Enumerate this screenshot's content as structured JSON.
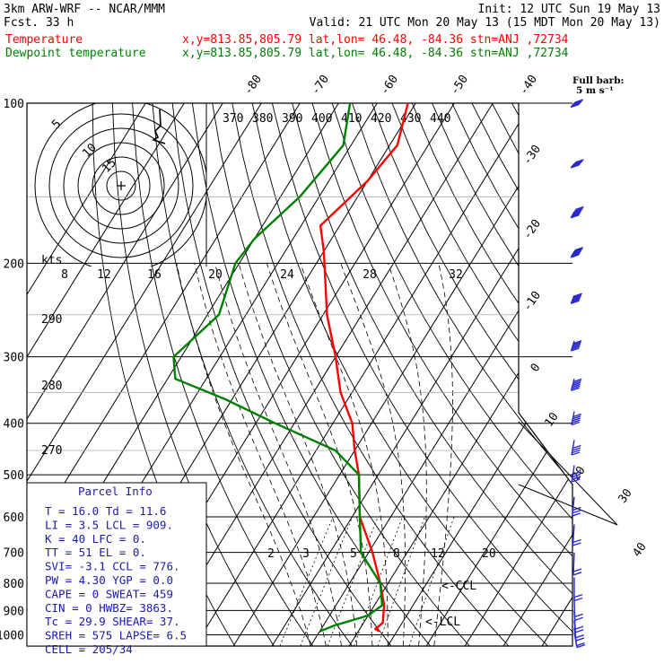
{
  "header": {
    "model": "3km ARW-WRF -- NCAR/MMM",
    "init": "Init: 12 UTC Sun 19 May 13",
    "fcst": "Fcst.   33 h",
    "valid": "Valid: 21 UTC Mon 20 May 13 (15 MDT Mon 20 May 13)"
  },
  "legend": [
    {
      "name": "Temperature",
      "location": "x,y=813.85,805.79   lat,lon= 46.48, -84.36  stn=ANJ ,72734",
      "color": "#ff0000"
    },
    {
      "name": "Dewpoint temperature",
      "location": "x,y=813.85,805.79   lat,lon= 46.48, -84.36  stn=ANJ ,72734",
      "color": "#008000"
    }
  ],
  "wind_barb_key": {
    "line1": "Full barb:",
    "line2": "5 m s⁻¹"
  },
  "hodograph": {
    "ring_labels": [
      "5",
      "10",
      "15"
    ],
    "speed_unit": "kts",
    "speed_ticks": [
      "8",
      "12",
      "16",
      "20",
      "24",
      "28",
      "32"
    ]
  },
  "parcel_info": {
    "title": "Parcel Info",
    "rows": [
      {
        "l": "T  =    16.0 Td =  11.6"
      },
      {
        "l": "LI =     3.5 LCL =  909."
      },
      {
        "l": "K  =      40 LFC =    0."
      },
      {
        "l": "TT =      51 EL  =    0."
      },
      {
        "l": "SVI=    -3.1 CCL =  776."
      },
      {
        "l": "PW =    4.30 YGP =   0.0"
      },
      {
        "l": "CAPE =     0 SWEAT=  459"
      },
      {
        "l": "CIN  =     0 HWBZ= 3863."
      },
      {
        "l": "Tc  =   29.9 SHEAR=  37."
      },
      {
        "l": "SREH =   575 LAPSE=  6.5"
      },
      {
        "l": "CELL = 205/34"
      }
    ]
  },
  "level_markers": {
    "ccl": "CCL",
    "lcl": "LCL"
  },
  "chart_data": {
    "type": "line",
    "pressure_levels": [
      "100",
      "200",
      "300",
      "400",
      "500",
      "600",
      "700",
      "800",
      "900",
      "1000"
    ],
    "isotherm_labels": [
      "-80",
      "-70",
      "-60",
      "-50",
      "-40",
      "-30",
      "-20",
      "-10",
      "0",
      "10",
      "20",
      "30",
      "40"
    ],
    "theta_labels": [
      "370",
      "380",
      "390",
      "400",
      "410",
      "420",
      "430",
      "440"
    ],
    "height_labels": [
      "290",
      "280",
      "270"
    ],
    "mixing_ratio_labels": [
      "2",
      "3",
      "5",
      "8",
      "12",
      "20"
    ],
    "series": [
      {
        "name": "Temperature",
        "color": "#ff0000",
        "points": [
          [
            100,
            -62
          ],
          [
            120,
            -58
          ],
          [
            140,
            -60
          ],
          [
            170,
            -65
          ],
          [
            190,
            -60
          ],
          [
            250,
            -49
          ],
          [
            300,
            -40
          ],
          [
            350,
            -33
          ],
          [
            400,
            -25
          ],
          [
            450,
            -20
          ],
          [
            500,
            -15
          ],
          [
            600,
            -8
          ],
          [
            700,
            1
          ],
          [
            800,
            8
          ],
          [
            880,
            12.5
          ],
          [
            950,
            15
          ],
          [
            975,
            14
          ],
          [
            985,
            15.5
          ]
        ]
      },
      {
        "name": "Dewpoint temperature",
        "color": "#008000",
        "points": [
          [
            100,
            -77
          ],
          [
            120,
            -72
          ],
          [
            150,
            -75
          ],
          [
            180,
            -80
          ],
          [
            200,
            -81
          ],
          [
            250,
            -77
          ],
          [
            300,
            -82
          ],
          [
            330,
            -78
          ],
          [
            360,
            -62
          ],
          [
            400,
            -45
          ],
          [
            450,
            -25
          ],
          [
            500,
            -15
          ],
          [
            600,
            -8
          ],
          [
            700,
            -2
          ],
          [
            800,
            8
          ],
          [
            880,
            12
          ],
          [
            920,
            10
          ],
          [
            960,
            3
          ],
          [
            985,
            0
          ]
        ]
      }
    ],
    "wind_barbs": [
      {
        "p": 100,
        "dir": 260,
        "spd": 45
      },
      {
        "p": 130,
        "dir": 260,
        "spd": 50
      },
      {
        "p": 160,
        "dir": 255,
        "spd": 50
      },
      {
        "p": 190,
        "dir": 255,
        "spd": 45
      },
      {
        "p": 230,
        "dir": 250,
        "spd": 35
      },
      {
        "p": 280,
        "dir": 245,
        "spd": 30
      },
      {
        "p": 330,
        "dir": 240,
        "spd": 30
      },
      {
        "p": 380,
        "dir": 235,
        "spd": 25
      },
      {
        "p": 430,
        "dir": 230,
        "spd": 20
      },
      {
        "p": 480,
        "dir": 225,
        "spd": 20
      },
      {
        "p": 550,
        "dir": 215,
        "spd": 15
      },
      {
        "p": 620,
        "dir": 205,
        "spd": 12
      },
      {
        "p": 700,
        "dir": 195,
        "spd": 10
      },
      {
        "p": 780,
        "dir": 180,
        "spd": 10
      },
      {
        "p": 850,
        "dir": 170,
        "spd": 10
      },
      {
        "p": 900,
        "dir": 160,
        "spd": 12
      },
      {
        "p": 940,
        "dir": 150,
        "spd": 10
      },
      {
        "p": 970,
        "dir": 140,
        "spd": 8
      },
      {
        "p": 990,
        "dir": 130,
        "spd": 6
      }
    ]
  },
  "colors": {
    "temperature": "#ff0000",
    "dewpoint": "#008000",
    "info_text": "#1a1aa8",
    "barbs": "#2a2acf"
  }
}
